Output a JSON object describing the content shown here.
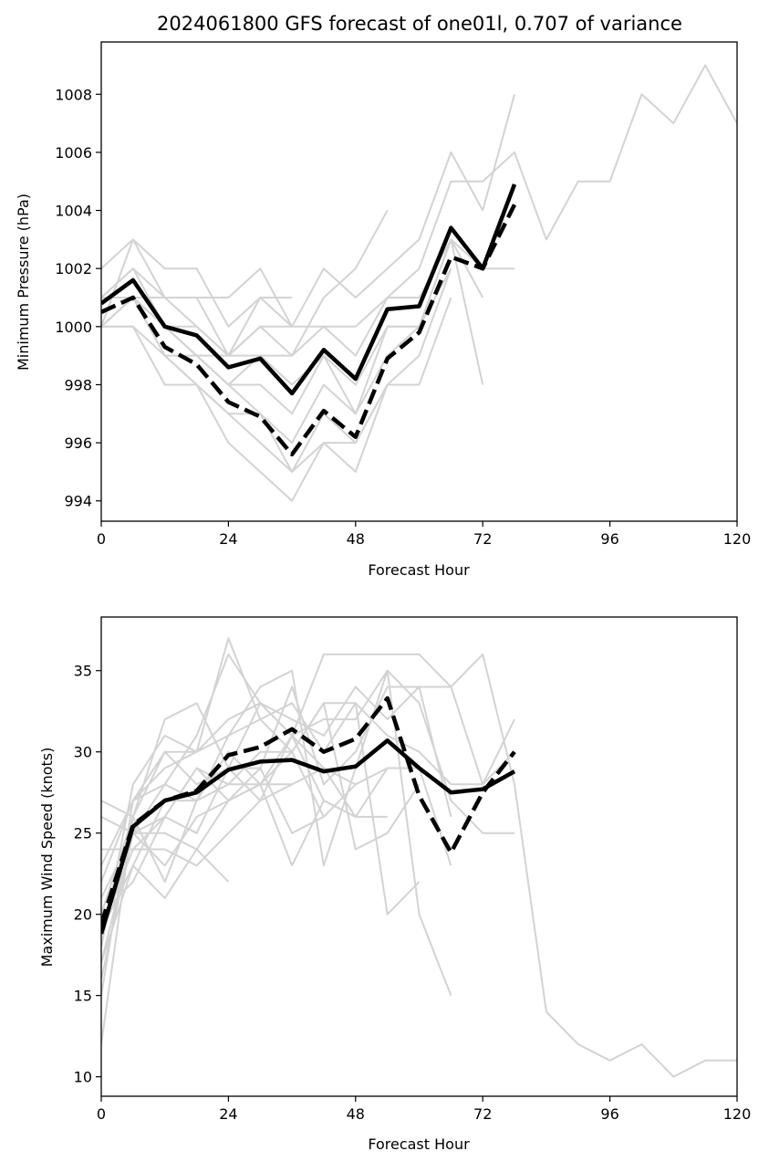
{
  "title": "2024061800 GFS forecast of one01l, 0.707 of variance",
  "colors": {
    "member": "#d3d3d3",
    "mean": "#000000"
  },
  "chart_data": [
    {
      "type": "line",
      "name": "pressure",
      "xlabel": "Forecast Hour",
      "ylabel": "Minimum Pressure (hPa)",
      "xlim": [
        0,
        120
      ],
      "ylim": [
        993.3,
        1009.8
      ],
      "xticks": [
        0,
        24,
        48,
        72,
        96,
        120
      ],
      "yticks": [
        994,
        996,
        998,
        1000,
        1002,
        1004,
        1006,
        1008
      ],
      "members": [
        {
          "x": [
            0,
            6,
            12,
            18,
            24,
            30,
            36,
            42,
            48,
            54,
            60,
            66,
            72,
            78,
            84,
            90,
            96,
            102,
            108,
            114,
            120
          ],
          "y": [
            1000,
            1003,
            1001,
            1001,
            999,
            1000,
            1000,
            1000,
            1000,
            1001,
            1002,
            1005,
            1005,
            1006,
            1003,
            1005,
            1005,
            1008,
            1007,
            1009,
            1007
          ]
        },
        {
          "x": [
            0,
            6,
            12,
            18,
            24,
            30,
            36,
            42,
            48,
            54,
            60,
            66,
            72,
            78
          ],
          "y": [
            1002,
            1003,
            1002,
            1002,
            1000,
            1001,
            1000,
            1002,
            1001,
            1002,
            1003,
            1006,
            1004,
            1008
          ]
        },
        {
          "x": [
            0,
            6,
            12,
            18,
            24,
            30,
            36
          ],
          "y": [
            1001,
            1002,
            1001,
            1001,
            1001,
            1002,
            1000
          ]
        },
        {
          "x": [
            0,
            6,
            12,
            18,
            24,
            30,
            36
          ],
          "y": [
            1001,
            1001,
            1001,
            1000,
            999,
            1001,
            1001
          ]
        },
        {
          "x": [
            0,
            6,
            12,
            18,
            24,
            30,
            36,
            42,
            48,
            54,
            60,
            66,
            72,
            78
          ],
          "y": [
            1001,
            1002,
            1000,
            1000,
            999,
            999,
            999,
            1000,
            999,
            1001,
            1001,
            1003,
            1002,
            1002
          ]
        },
        {
          "x": [
            0,
            6,
            12,
            18,
            24,
            30,
            36,
            42,
            48,
            54,
            60,
            66,
            72
          ],
          "y": [
            1001,
            1001,
            1000,
            999,
            998,
            999,
            998,
            999,
            998,
            1000,
            1000,
            1003,
            1001
          ]
        },
        {
          "x": [
            0,
            6,
            12,
            18,
            24,
            30,
            36,
            42,
            48,
            54,
            60,
            66,
            72
          ],
          "y": [
            1000,
            1001,
            1000,
            999,
            998,
            998,
            997,
            999,
            997,
            999,
            1000,
            1003,
            998
          ]
        },
        {
          "x": [
            0,
            6,
            12,
            18,
            24,
            30,
            36,
            42,
            48,
            54,
            60,
            66
          ],
          "y": [
            1000,
            1001,
            999,
            999,
            998,
            997,
            996,
            998,
            997,
            1000,
            1000,
            1002
          ]
        },
        {
          "x": [
            0,
            6,
            12,
            18,
            24,
            30,
            36,
            42,
            48,
            54,
            60,
            66
          ],
          "y": [
            1000,
            1000,
            998,
            998,
            997,
            997,
            995,
            997,
            996,
            998,
            999,
            1002
          ]
        },
        {
          "x": [
            0,
            6,
            12,
            18,
            24,
            30,
            36,
            42,
            48,
            54,
            60,
            66
          ],
          "y": [
            1000,
            1001,
            999,
            998,
            996,
            995,
            994,
            996,
            996,
            998,
            998,
            1001
          ]
        },
        {
          "x": [
            0,
            6,
            12,
            18,
            24,
            30,
            36,
            42,
            48,
            54
          ],
          "y": [
            1000,
            1000,
            999,
            998,
            997,
            996,
            995,
            996,
            995,
            998
          ]
        },
        {
          "x": [
            0,
            6,
            12,
            18,
            24,
            30,
            36,
            42,
            48,
            54
          ],
          "y": [
            1001,
            1001,
            1000,
            999,
            999,
            1000,
            999,
            1001,
            1002,
            1004
          ]
        }
      ],
      "mean_solid": {
        "x": [
          0,
          6,
          12,
          18,
          24,
          30,
          36,
          42,
          48,
          54,
          60,
          66,
          72,
          78
        ],
        "y": [
          1000.8,
          1001.6,
          1000.0,
          999.7,
          998.6,
          998.9,
          997.7,
          999.2,
          998.2,
          1000.6,
          1000.7,
          1003.4,
          1002.0,
          1004.9
        ]
      },
      "mean_dashed": {
        "x": [
          0,
          6,
          12,
          18,
          24,
          30,
          36,
          42,
          48,
          54,
          60,
          66,
          72,
          78
        ],
        "y": [
          1000.5,
          1001.0,
          999.3,
          998.7,
          997.4,
          996.9,
          995.6,
          997.1,
          996.2,
          998.9,
          999.8,
          1002.4,
          1002.0,
          1004.2
        ]
      }
    },
    {
      "type": "line",
      "name": "wind",
      "xlabel": "Forecast Hour",
      "ylabel": "Maximum Wind Speed (knots)",
      "xlim": [
        0,
        120
      ],
      "ylim": [
        8.8,
        38.3
      ],
      "xticks": [
        0,
        24,
        48,
        72,
        96,
        120
      ],
      "yticks": [
        10,
        15,
        20,
        25,
        30,
        35
      ],
      "members": [
        {
          "x": [
            0,
            6,
            12,
            18,
            24,
            30,
            36,
            42,
            48,
            54,
            60,
            66,
            72,
            78,
            84,
            90,
            96,
            102,
            108,
            114,
            120
          ],
          "y": [
            12,
            26,
            30,
            30,
            32,
            33,
            31,
            36,
            36,
            36,
            36,
            34,
            36,
            28,
            14,
            12,
            11,
            12,
            10,
            11,
            11
          ]
        },
        {
          "x": [
            0,
            6,
            12,
            18,
            24,
            30,
            36,
            42,
            48,
            54,
            60,
            66
          ],
          "y": [
            15,
            27,
            29,
            30,
            31,
            34,
            35,
            23,
            29,
            35,
            20,
            15
          ]
        },
        {
          "x": [
            0,
            6,
            12,
            18,
            24,
            30,
            36,
            42,
            48,
            54,
            60
          ],
          "y": [
            18,
            28,
            31,
            30,
            37,
            32,
            30,
            33,
            33,
            20,
            22
          ]
        },
        {
          "x": [
            0,
            6,
            12,
            18,
            24,
            30,
            36,
            42,
            48,
            54,
            60,
            66,
            72,
            78
          ],
          "y": [
            20,
            26,
            32,
            33,
            29,
            33,
            32,
            31,
            34,
            32,
            34,
            34,
            28,
            32
          ]
        },
        {
          "x": [
            0,
            6,
            12,
            18,
            24,
            30,
            36,
            42,
            48,
            54,
            60,
            66,
            72,
            78
          ],
          "y": [
            22,
            27,
            28,
            31,
            36,
            33,
            31,
            32,
            32,
            35,
            33,
            27,
            25,
            25
          ]
        },
        {
          "x": [
            0,
            6,
            12,
            18,
            24,
            30,
            36,
            42,
            48,
            54,
            60,
            66,
            72,
            78
          ],
          "y": [
            17,
            25,
            28,
            27,
            31,
            32,
            33,
            30,
            33,
            31,
            30,
            28,
            28,
            30
          ]
        },
        {
          "x": [
            0,
            6,
            12,
            18,
            24,
            30,
            36,
            42,
            48,
            54,
            60,
            66
          ],
          "y": [
            23,
            27,
            30,
            28,
            29,
            29,
            34,
            28,
            30,
            34,
            34,
            26
          ]
        },
        {
          "x": [
            0,
            6,
            12,
            18,
            24,
            30,
            36,
            42,
            48,
            54,
            60,
            66
          ],
          "y": [
            26,
            25,
            25,
            24,
            27,
            29,
            25,
            26,
            28,
            29,
            29,
            23
          ]
        },
        {
          "x": [
            0,
            6,
            12,
            18,
            24,
            30,
            36,
            42,
            48,
            54,
            60
          ],
          "y": [
            24,
            24,
            26,
            29,
            28,
            30,
            30,
            33,
            24,
            25,
            28
          ]
        },
        {
          "x": [
            0,
            6,
            12,
            18,
            24,
            30,
            36,
            42,
            48,
            54,
            60
          ],
          "y": [
            27,
            26,
            22,
            27,
            30,
            28,
            31,
            29,
            26,
            29,
            29
          ]
        },
        {
          "x": [
            0,
            6,
            12,
            18,
            24,
            30,
            36,
            42,
            48
          ],
          "y": [
            20,
            22,
            26,
            25,
            29,
            27,
            31,
            27,
            26
          ]
        },
        {
          "x": [
            0,
            6,
            12,
            18,
            24,
            30,
            36,
            42,
            48
          ],
          "y": [
            17,
            23,
            27,
            27,
            28,
            28,
            28,
            29,
            28
          ]
        },
        {
          "x": [
            0,
            6,
            12,
            18,
            24,
            30,
            36,
            42
          ],
          "y": [
            21,
            25,
            23,
            26,
            27,
            28,
            30,
            26
          ]
        },
        {
          "x": [
            0,
            6,
            12,
            18,
            24
          ],
          "y": [
            19,
            23,
            21,
            24,
            22
          ]
        },
        {
          "x": [
            0,
            6,
            12,
            18,
            24,
            30,
            36,
            42,
            48,
            54
          ],
          "y": [
            16,
            25,
            26,
            29,
            27,
            28,
            23,
            27,
            26,
            26
          ]
        },
        {
          "x": [
            0,
            6,
            12,
            18,
            24,
            30,
            36
          ],
          "y": [
            19,
            24,
            24,
            23,
            25,
            27,
            28
          ]
        }
      ],
      "mean_solid": {
        "x": [
          0,
          6,
          12,
          18,
          24,
          30,
          36,
          42,
          48,
          54,
          60,
          66,
          72,
          78
        ],
        "y": [
          18.8,
          25.4,
          27.0,
          27.5,
          28.9,
          29.4,
          29.5,
          28.8,
          29.1,
          30.7,
          29.0,
          27.5,
          27.7,
          28.8
        ]
      },
      "mean_dashed": {
        "x": [
          0,
          6,
          12,
          18,
          24,
          30,
          36,
          42,
          48,
          54,
          60,
          66,
          72,
          78
        ],
        "y": [
          19.4,
          25.5,
          27.0,
          27.6,
          29.8,
          30.3,
          31.4,
          30.0,
          30.8,
          33.3,
          27.3,
          23.8,
          27.5,
          30.0
        ]
      }
    }
  ]
}
